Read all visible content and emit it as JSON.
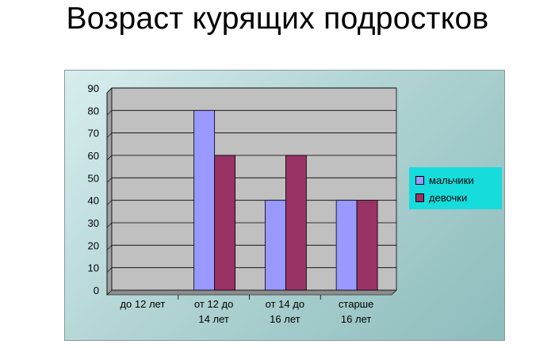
{
  "title": "Возраст курящих подростков",
  "colors": {
    "boys": "#9999ff",
    "girls": "#993366",
    "plot_bg": "#c0c0c0",
    "legend_bg": "#16dcdc"
  },
  "chart_data": {
    "type": "bar",
    "title": "Возраст курящих подростков",
    "categories": [
      [
        "до 12 лет"
      ],
      [
        "от 12 до",
        "14 лет"
      ],
      [
        "от 14 до",
        "16 лет"
      ],
      [
        "старше",
        "16 лет"
      ]
    ],
    "series": [
      {
        "name": "мальчики",
        "color": "#9999ff",
        "values": [
          0,
          80,
          40,
          40
        ]
      },
      {
        "name": "девочки",
        "color": "#993366",
        "values": [
          0,
          60,
          60,
          40
        ]
      }
    ],
    "ylim": [
      0,
      90
    ],
    "yticks": [
      0,
      10,
      20,
      30,
      40,
      50,
      60,
      70,
      80,
      90
    ],
    "grid": true,
    "legend": "right",
    "xlabel": "",
    "ylabel": ""
  }
}
